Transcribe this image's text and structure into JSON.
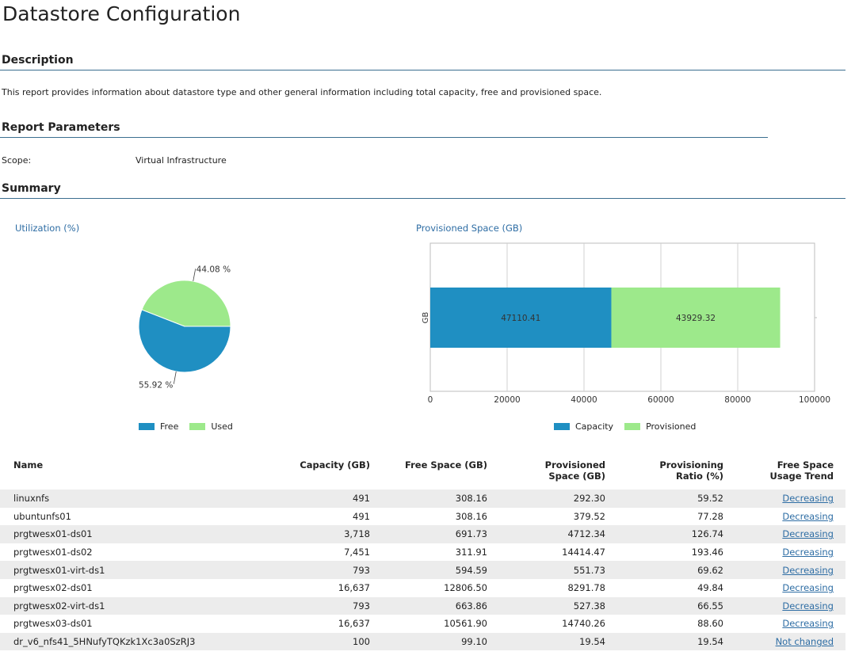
{
  "page": {
    "title": "Datastore Configuration"
  },
  "description": {
    "heading": "Description",
    "text": "This report provides information about datastore type and other general information including total capacity, free and provisioned space."
  },
  "parameters": {
    "heading": "Report Parameters",
    "scope_label": "Scope:",
    "scope_value": "Virtual Infrastructure"
  },
  "summary": {
    "heading": "Summary"
  },
  "chart_data": [
    {
      "type": "pie",
      "title": "Utilization (%)",
      "slices": [
        {
          "label": "Free",
          "value": 55.92,
          "display": "55.92 %",
          "color": "#1f8fc2"
        },
        {
          "label": "Used",
          "value": 44.08,
          "display": "44.08 %",
          "color": "#9de98b"
        }
      ],
      "legend": [
        "Free",
        "Used"
      ],
      "legend_position": "bottom"
    },
    {
      "type": "bar",
      "orientation": "horizontal",
      "stacked": true,
      "title": "Provisioned Space (GB)",
      "ylabel": "GB",
      "xlim": [
        0,
        100000
      ],
      "xticks": [
        "0",
        "20000",
        "40000",
        "60000",
        "80000",
        "100000"
      ],
      "series": [
        {
          "name": "Capacity",
          "values": [
            47110.41
          ],
          "label": "47110.41",
          "color": "#1f8fc2"
        },
        {
          "name": "Provisioned",
          "values": [
            43929.32
          ],
          "label": "43929.32",
          "color": "#9de98b"
        }
      ],
      "grid": true,
      "legend_position": "bottom"
    }
  ],
  "table": {
    "headers": {
      "name": "Name",
      "capacity": "Capacity (GB)",
      "free": "Free Space (GB)",
      "provisioned": "Provisioned Space (GB)",
      "ratio": "Provisioning Ratio (%)",
      "trend": "Free Space Usage Trend"
    },
    "rows": [
      {
        "name": "linuxnfs",
        "capacity": "491",
        "free": "308.16",
        "provisioned": "292.30",
        "ratio": "59.52",
        "trend": "Decreasing"
      },
      {
        "name": "ubuntunfs01",
        "capacity": "491",
        "free": "308.16",
        "provisioned": "379.52",
        "ratio": "77.28",
        "trend": "Decreasing"
      },
      {
        "name": "prgtwesx01-ds01",
        "capacity": "3,718",
        "free": "691.73",
        "provisioned": "4712.34",
        "ratio": "126.74",
        "trend": "Decreasing"
      },
      {
        "name": "prgtwesx01-ds02",
        "capacity": "7,451",
        "free": "311.91",
        "provisioned": "14414.47",
        "ratio": "193.46",
        "trend": "Decreasing"
      },
      {
        "name": "prgtwesx01-virt-ds1",
        "capacity": "793",
        "free": "594.59",
        "provisioned": "551.73",
        "ratio": "69.62",
        "trend": "Decreasing"
      },
      {
        "name": "prgtwesx02-ds01",
        "capacity": "16,637",
        "free": "12806.50",
        "provisioned": "8291.78",
        "ratio": "49.84",
        "trend": "Decreasing"
      },
      {
        "name": "prgtwesx02-virt-ds1",
        "capacity": "793",
        "free": "663.86",
        "provisioned": "527.38",
        "ratio": "66.55",
        "trend": "Decreasing"
      },
      {
        "name": "prgtwesx03-ds01",
        "capacity": "16,637",
        "free": "10561.90",
        "provisioned": "14740.26",
        "ratio": "88.60",
        "trend": "Decreasing"
      },
      {
        "name": "dr_v6_nfs41_5HNufyTQKzk1Xc3a0SzRJ3",
        "capacity": "100",
        "free": "99.10",
        "provisioned": "19.54",
        "ratio": "19.54",
        "trend": "Not changed"
      }
    ]
  }
}
